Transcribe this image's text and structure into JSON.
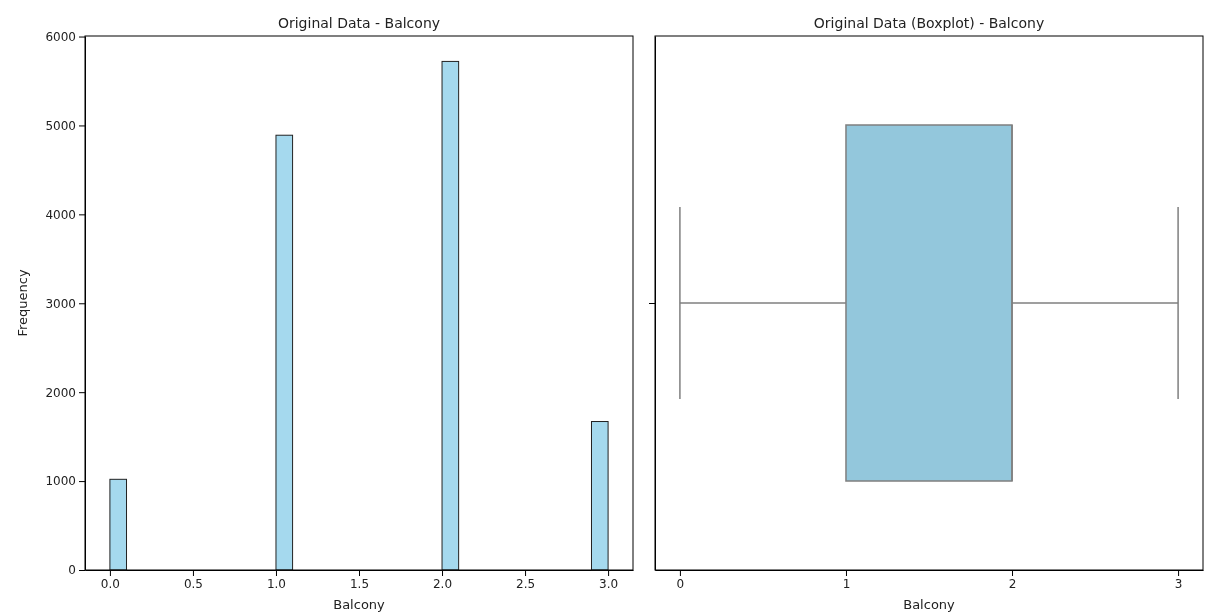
{
  "chart_data": [
    {
      "type": "histogram",
      "title": "Original Data - Balcony",
      "xlabel": "Balcony",
      "ylabel": "Frequency",
      "color": "#a5d9ee",
      "bins": [
        0,
        0.1,
        0.2,
        0.3,
        0.4,
        0.5,
        0.6,
        0.7,
        0.8,
        0.9,
        1,
        1.1,
        1.2,
        1.3,
        1.4,
        1.5,
        1.6,
        1.7,
        1.8,
        1.9,
        2,
        2.1,
        2.2,
        2.3,
        2.4,
        2.5,
        2.6,
        2.7,
        2.8,
        2.9,
        3
      ],
      "values": [
        1020,
        0,
        0,
        0,
        0,
        0,
        0,
        0,
        0,
        0,
        4890,
        0,
        0,
        0,
        0,
        0,
        0,
        0,
        0,
        0,
        5720,
        0,
        0,
        0,
        0,
        0,
        0,
        0,
        0,
        1670
      ],
      "xlim": [
        -0.15,
        3.15
      ],
      "xticks": [
        {
          "value": 0,
          "label": "0.0"
        },
        {
          "value": 0.5,
          "label": "0.5"
        },
        {
          "value": 1,
          "label": "1.0"
        },
        {
          "value": 1.5,
          "label": "1.5"
        },
        {
          "value": 2,
          "label": "2.0"
        },
        {
          "value": 2.5,
          "label": "2.5"
        },
        {
          "value": 3,
          "label": "3.0"
        }
      ],
      "ylim": [
        0,
        6006
      ],
      "yticks": [
        0,
        1000,
        2000,
        3000,
        4000,
        5000,
        6000
      ]
    },
    {
      "type": "box",
      "title": "Original Data (Boxplot) - Balcony",
      "xlabel": "Balcony",
      "orientation": "horizontal",
      "color": "#93c7dc",
      "categories": [
        null
      ],
      "boxes": [
        {
          "low": 0,
          "q1": 1,
          "median": 2,
          "q3": 2,
          "high": 3
        }
      ],
      "xlim": [
        -0.15,
        3.15
      ],
      "xticks": [
        {
          "value": 0,
          "label": "0"
        },
        {
          "value": 1,
          "label": "1"
        },
        {
          "value": 2,
          "label": "2"
        },
        {
          "value": 3,
          "label": "3"
        }
      ]
    }
  ]
}
